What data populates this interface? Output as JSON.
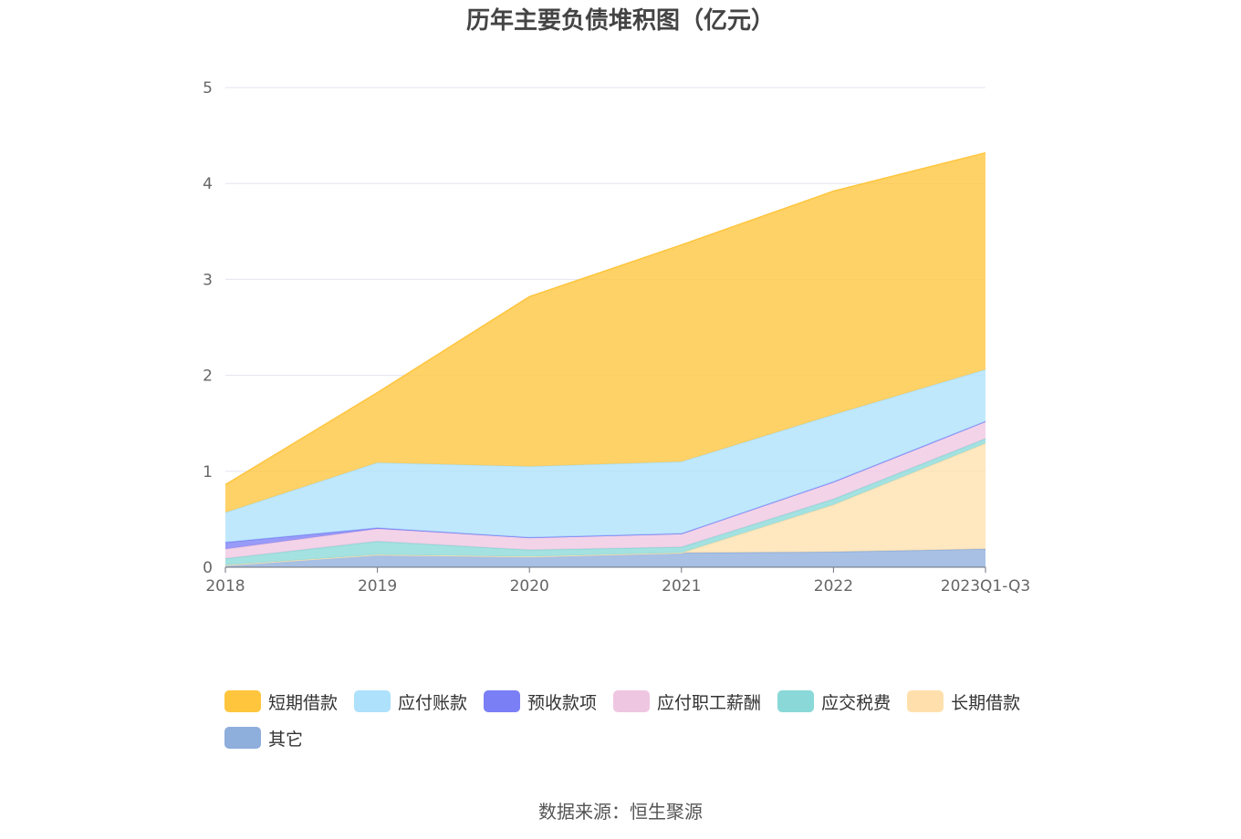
{
  "title": "历年主要负债堆积图（亿元）",
  "source": "数据来源：恒生聚源",
  "chart_data": {
    "type": "area",
    "stacked": true,
    "categories": [
      "2018",
      "2019",
      "2020",
      "2021",
      "2022",
      "2023Q1-Q3"
    ],
    "ylim": [
      0,
      5
    ],
    "yticks": [
      0,
      1,
      2,
      3,
      4,
      5
    ],
    "grid": true,
    "legend_position": "bottom",
    "series": [
      {
        "name": "其它",
        "color": "#8eaedc",
        "values": [
          0.02,
          0.13,
          0.11,
          0.15,
          0.16,
          0.19
        ]
      },
      {
        "name": "长期借款",
        "color": "#ffe0ad",
        "values": [
          0.0,
          0.0,
          0.0,
          0.0,
          0.49,
          1.1
        ]
      },
      {
        "name": "应交税费",
        "color": "#8ad8d8",
        "values": [
          0.07,
          0.14,
          0.07,
          0.06,
          0.06,
          0.05
        ]
      },
      {
        "name": "应付职工薪酬",
        "color": "#efc6e2",
        "values": [
          0.1,
          0.13,
          0.13,
          0.14,
          0.18,
          0.18
        ]
      },
      {
        "name": "预收款项",
        "color": "#7b7ff5",
        "values": [
          0.07,
          0.01,
          0.0,
          0.0,
          0.0,
          0.0
        ]
      },
      {
        "name": "应付账款",
        "color": "#aee1fb",
        "values": [
          0.31,
          0.68,
          0.74,
          0.75,
          0.7,
          0.54
        ]
      },
      {
        "name": "短期借款",
        "color": "#ffc53d",
        "values": [
          0.29,
          0.73,
          1.77,
          2.26,
          2.33,
          2.26
        ]
      }
    ],
    "legend_order": [
      "短期借款",
      "应付账款",
      "预收款项",
      "应付职工薪酬",
      "应交税费",
      "长期借款",
      "其它"
    ]
  }
}
